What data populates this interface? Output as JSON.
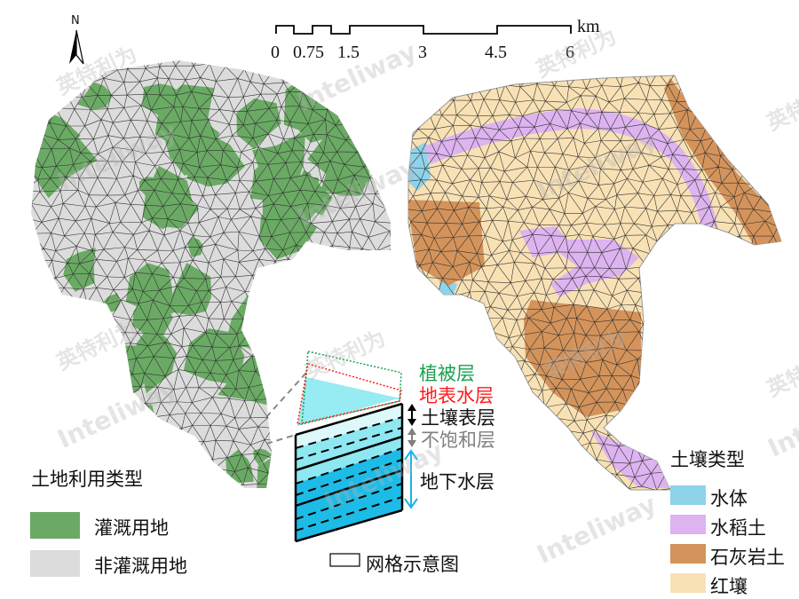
{
  "north_label": "N",
  "scale_bar": {
    "ticks": [
      "0",
      "0.75",
      "1.5",
      "3",
      "4.5",
      "6"
    ],
    "unit": "km"
  },
  "land_use_legend": {
    "title": "土地利用类型",
    "items": [
      {
        "label": "灌溉用地",
        "color": "#6aaa64"
      },
      {
        "label": "非灌溉用地",
        "color": "#dcdcdc"
      }
    ]
  },
  "soil_legend": {
    "title": "土壤类型",
    "items": [
      {
        "label": "水体",
        "color": "#8fd3ea"
      },
      {
        "label": "水稻土",
        "color": "#ddb3f0"
      },
      {
        "label": "石灰岩土",
        "color": "#d4935a"
      },
      {
        "label": "红壤",
        "color": "#f8e1b4"
      }
    ]
  },
  "grid_diagram": {
    "layers": [
      {
        "label": "植被层",
        "color": "#1aa050"
      },
      {
        "label": "地表水层",
        "color": "#ff1a1a"
      },
      {
        "label": "土壤表层",
        "color": "#111111"
      },
      {
        "label": "不饱和层",
        "color": "#808080"
      },
      {
        "label": "地下水层",
        "color": "#111111"
      }
    ],
    "caption": "网格示意图"
  },
  "watermark": {
    "cn": "英特利为",
    "en": "Inteliway"
  }
}
